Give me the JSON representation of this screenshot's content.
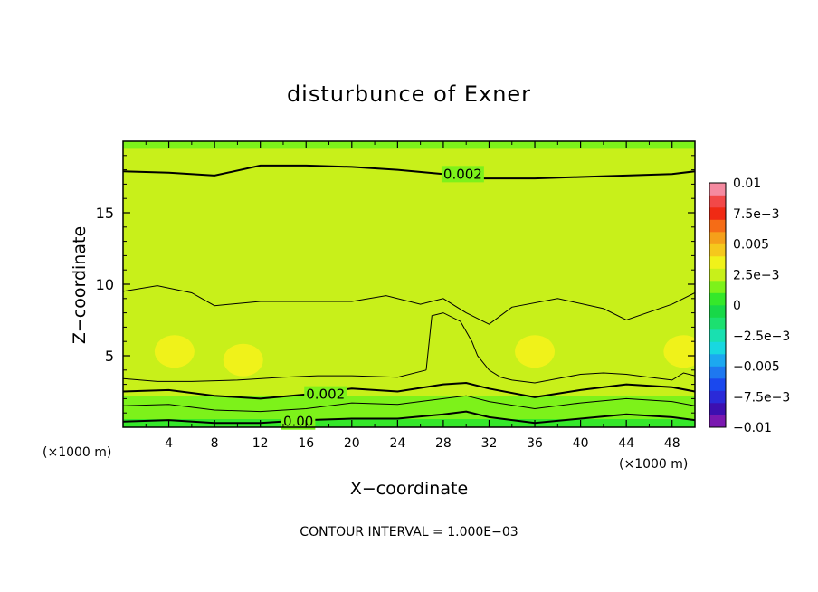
{
  "chart_data": {
    "type": "heatmap",
    "title": "disturbunce of Exner",
    "xlabel": "X−coordinate",
    "ylabel": "Z−coordinate",
    "x_unit": "(×1000 m)",
    "x_unit_left": "(×1000 m)",
    "xlim": [
      0,
      50
    ],
    "ylim": [
      0,
      20
    ],
    "x_ticks": [
      4,
      8,
      12,
      16,
      20,
      24,
      28,
      32,
      36,
      40,
      44,
      48
    ],
    "x_tick_labels": [
      "4",
      "8",
      "12",
      "16",
      "20",
      "24",
      "28",
      "32",
      "36",
      "40",
      "44",
      "48"
    ],
    "y_ticks": [
      5,
      10,
      15
    ],
    "y_tick_labels": [
      "5",
      "10",
      "15"
    ],
    "footer": "CONTOUR INTERVAL = 1.000E−03",
    "colorbar": {
      "range": [
        -0.01,
        0.01
      ],
      "labels": [
        "0.01",
        "7.5e−3",
        "0.005",
        "2.5e−3",
        "0",
        "−2.5e−3",
        "−0.005",
        "−7.5e−3",
        "−0.01"
      ],
      "label_values": [
        0.01,
        0.0075,
        0.005,
        0.0025,
        0,
        -0.0025,
        -0.005,
        -0.0075,
        -0.01
      ],
      "colors_bottom_to_top": [
        "#7a18b0",
        "#3d0fb0",
        "#2a2ad8",
        "#1a48ee",
        "#1e78f0",
        "#1ca8f0",
        "#18d8e0",
        "#19e0b0",
        "#1ce070",
        "#18d848",
        "#35e82a",
        "#7df21a",
        "#c8f01a",
        "#f0f21a",
        "#f5c81c",
        "#f5a01a",
        "#f56c16",
        "#f02a14",
        "#f24848",
        "#f58aa0"
      ]
    },
    "field_layers": {
      "z": [
        0,
        0.6,
        1.2,
        2.2,
        3.2,
        4.2,
        5.2,
        6.5,
        8.2,
        10.0,
        13.5,
        19.5
      ],
      "values": [
        0.0008,
        0.0012,
        0.0016,
        0.002,
        0.0023,
        0.0026,
        0.0029,
        0.0027,
        0.0025,
        0.0022,
        0.002,
        0.0019
      ]
    },
    "contours": [
      {
        "label": "0.002",
        "x": [
          0,
          4,
          8,
          12,
          16,
          20,
          24,
          28,
          30,
          32,
          36,
          40,
          44,
          48,
          50
        ],
        "z": [
          17.9,
          17.8,
          17.6,
          18.3,
          18.3,
          18.2,
          18.0,
          17.7,
          17.4,
          17.4,
          17.4,
          17.5,
          17.6,
          17.7,
          17.9
        ]
      },
      {
        "label": "",
        "x": [
          0,
          3,
          6,
          8,
          12,
          16,
          20,
          23,
          26,
          28,
          30,
          32,
          34,
          38,
          42,
          44,
          48,
          50
        ],
        "z": [
          9.5,
          9.9,
          9.4,
          8.5,
          8.8,
          8.8,
          8.8,
          9.2,
          8.6,
          9.0,
          8.0,
          7.2,
          8.4,
          9.0,
          8.3,
          7.5,
          8.6,
          9.4
        ]
      },
      {
        "label": "",
        "x": [
          26.5,
          27,
          28,
          29.5,
          30.5,
          31,
          32,
          33,
          34,
          36,
          38,
          40,
          42,
          44,
          46,
          48,
          49,
          50
        ],
        "z": [
          4.0,
          7.8,
          8.0,
          7.4,
          6.0,
          5.0,
          4.0,
          3.5,
          3.3,
          3.1,
          3.4,
          3.7,
          3.8,
          3.7,
          3.5,
          3.3,
          3.8,
          3.6
        ]
      },
      {
        "label": "",
        "x": [
          0,
          3,
          6,
          10,
          14,
          17,
          20,
          24,
          26.5
        ],
        "z": [
          3.4,
          3.2,
          3.2,
          3.3,
          3.5,
          3.6,
          3.6,
          3.5,
          4.0
        ]
      },
      {
        "label": "0.002",
        "x": [
          0,
          4,
          8,
          12,
          16,
          20,
          24,
          28,
          30,
          32,
          36,
          40,
          44,
          48,
          50
        ],
        "z": [
          2.5,
          2.6,
          2.2,
          2.0,
          2.3,
          2.7,
          2.5,
          3.0,
          3.1,
          2.7,
          2.1,
          2.6,
          3.0,
          2.8,
          2.5
        ]
      },
      {
        "label": "",
        "x": [
          0,
          4,
          8,
          12,
          16,
          20,
          24,
          28,
          30,
          32,
          36,
          40,
          44,
          48,
          50
        ],
        "z": [
          1.5,
          1.6,
          1.2,
          1.1,
          1.3,
          1.7,
          1.6,
          2.0,
          2.2,
          1.8,
          1.3,
          1.7,
          2.0,
          1.8,
          1.5
        ]
      },
      {
        "label": "0.00",
        "x": [
          0,
          4,
          8,
          12,
          16,
          20,
          24,
          28,
          30,
          32,
          36,
          40,
          44,
          48,
          50
        ],
        "z": [
          0.4,
          0.5,
          0.3,
          0.3,
          0.5,
          0.6,
          0.6,
          0.9,
          1.1,
          0.7,
          0.3,
          0.6,
          0.9,
          0.7,
          0.5
        ]
      }
    ],
    "blobs": [
      {
        "x": 4.5,
        "z": 5.3
      },
      {
        "x": 10.5,
        "z": 4.7
      },
      {
        "x": 36.0,
        "z": 5.3
      },
      {
        "x": 49.0,
        "z": 5.3
      }
    ],
    "grid": false,
    "legend": "colorbar-right"
  }
}
